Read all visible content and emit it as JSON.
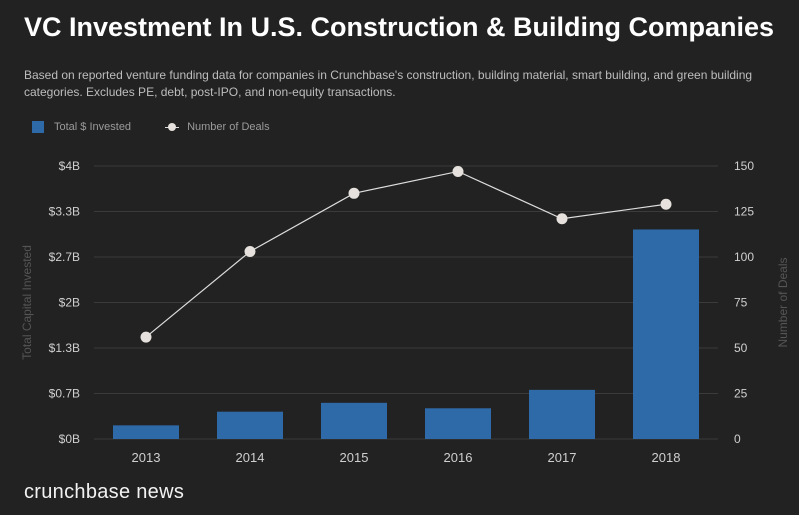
{
  "header": {
    "title": "VC Investment In U.S. Construction & Building Companies",
    "subtitle": "Based on reported venture funding data for companies in Crunchbase's construction, building material, smart building, and green building categories. Excludes PE, debt, post-IPO, and non-equity transactions."
  },
  "legend": {
    "bars_label": "Total $ Invested",
    "line_label": "Number of Deals"
  },
  "brand": "crunchbase news",
  "colors": {
    "bar": "#2f6aa8",
    "line": "#dddddd",
    "marker": "#e6e1dc",
    "grid": "#3b3b3b",
    "tick_text": "#cfcfcf",
    "axis_label": "#555555"
  },
  "chart_data": {
    "type": "bar",
    "title": "VC Investment In U.S. Construction & Building Companies",
    "categories": [
      "2013",
      "2014",
      "2015",
      "2016",
      "2017",
      "2018"
    ],
    "series": [
      {
        "name": "Total $ Invested",
        "type": "bar",
        "axis": "left",
        "values": [
          0.2,
          0.4,
          0.53,
          0.45,
          0.72,
          3.07
        ]
      },
      {
        "name": "Number of Deals",
        "type": "line",
        "axis": "right",
        "values": [
          56,
          103,
          135,
          147,
          121,
          129
        ]
      }
    ],
    "ylabel": "Total Capital Invested",
    "y2label": "Number of Deals",
    "ylim": [
      0,
      4
    ],
    "y2lim": [
      0,
      150
    ],
    "yticks": [
      "$0B",
      "$0.7B",
      "$1.3B",
      "$2B",
      "$2.7B",
      "$3.3B",
      "$4B"
    ],
    "y2ticks": [
      "0",
      "25",
      "50",
      "75",
      "100",
      "125",
      "150"
    ],
    "grid": true,
    "legend_position": "top-left"
  }
}
